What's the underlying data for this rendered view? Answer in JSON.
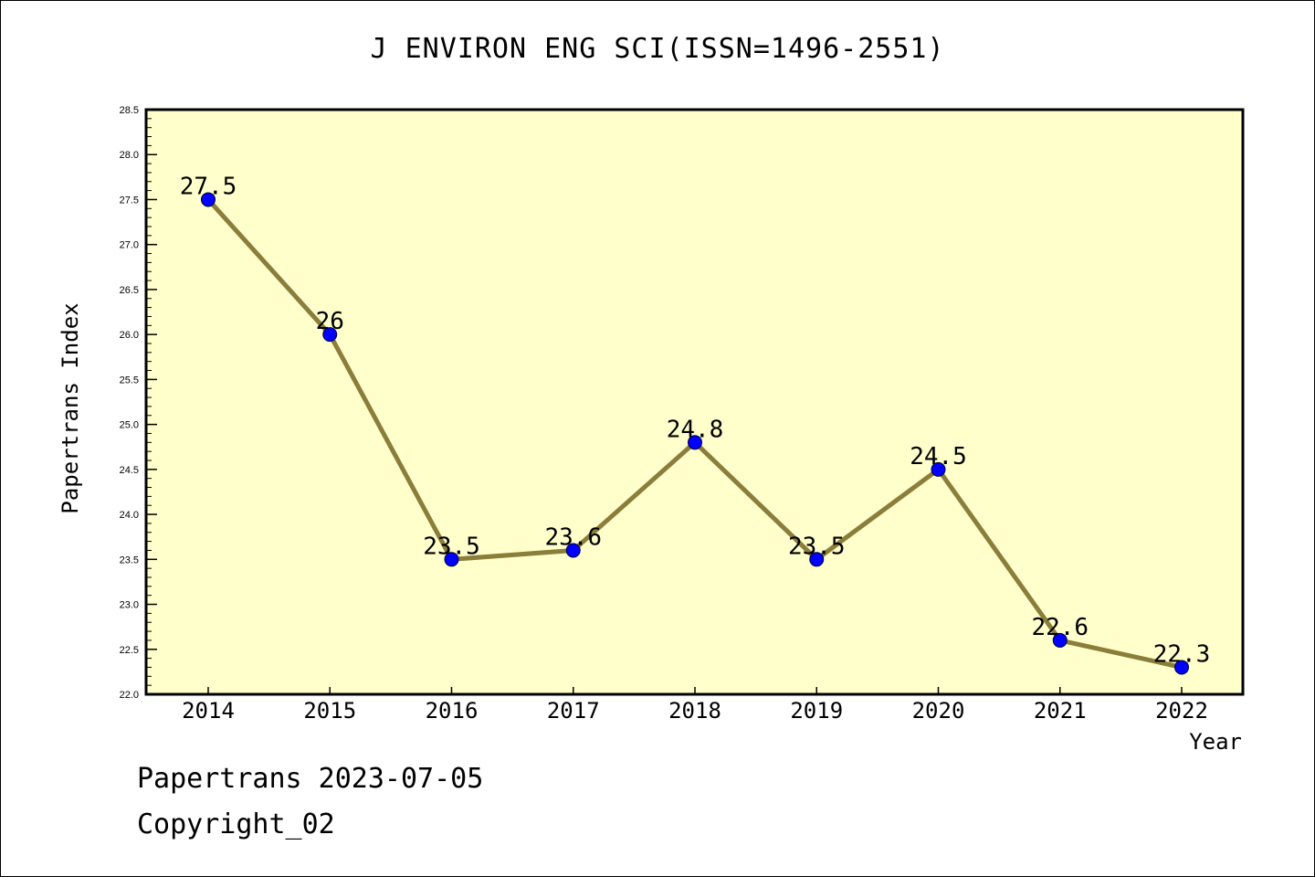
{
  "chart_data": {
    "type": "line",
    "title": "J ENVIRON ENG SCI(ISSN=1496-2551)",
    "xlabel": "Year",
    "ylabel": "Papertrans Index",
    "categories": [
      "2014",
      "2015",
      "2016",
      "2017",
      "2018",
      "2019",
      "2020",
      "2021",
      "2022"
    ],
    "series": [
      {
        "values": [
          27.5,
          26,
          23.5,
          23.6,
          24.8,
          23.5,
          24.5,
          22.6,
          22.3
        ],
        "labels": [
          "27.5",
          "26",
          "23.5",
          "23.6",
          "24.8",
          "23.5",
          "24.5",
          "22.6",
          "22.3"
        ]
      }
    ],
    "ylim": [
      22.0,
      28.5
    ],
    "yticks": [
      "22.0",
      "22.5",
      "23.0",
      "23.5",
      "24.0",
      "24.5",
      "25.0",
      "25.5",
      "26.0",
      "26.5",
      "27.0",
      "27.5",
      "28.0",
      "28.5"
    ],
    "grid": false,
    "colors": {
      "plot_background": "#ffffcc",
      "line": "#8b7d3a",
      "marker": "#0000ff"
    }
  },
  "footer": {
    "date_line": "Papertrans 2023-07-05",
    "copyright_line": "Copyright_02"
  }
}
